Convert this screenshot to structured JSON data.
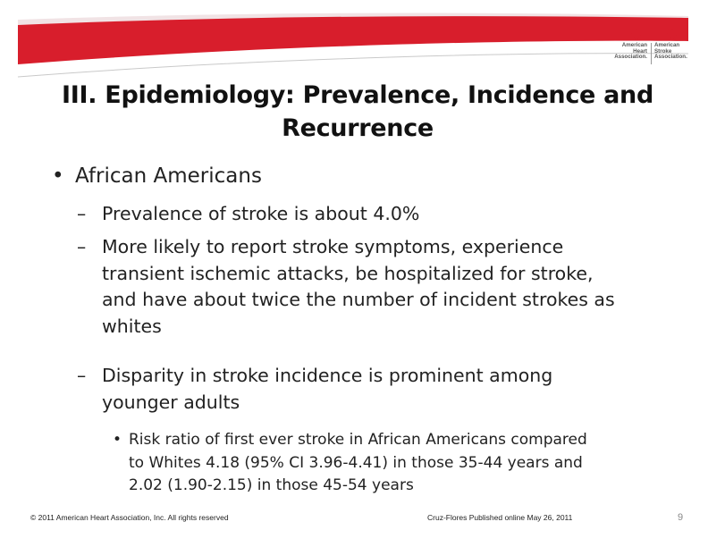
{
  "logo": {
    "left_lines": [
      "American",
      "Heart",
      "Association."
    ],
    "right_lines": [
      "American",
      "Stroke",
      "Association."
    ]
  },
  "title": {
    "line1": "III. Epidemiology:  Prevalence, Incidence and",
    "line2": "Recurrence"
  },
  "bullet": {
    "symbol": "•",
    "text": "African Americans"
  },
  "subpoints": [
    {
      "dash": "–",
      "lines": [
        "Prevalence of stroke is about 4.0%"
      ]
    },
    {
      "dash": "–",
      "lines": [
        "More likely to report stroke symptoms, experience",
        "transient ischemic attacks, be hospitalized for stroke,",
        "and have about twice the number of incident strokes as",
        "whites"
      ]
    },
    {
      "dash": "–",
      "lines": [
        "Disparity in stroke incidence is prominent among",
        "younger adults"
      ]
    }
  ],
  "subsub": {
    "symbol": "•",
    "lines": [
      "Risk ratio of first ever stroke in African Americans compared",
      "to Whites 4.18 (95% CI 3.96-4.41) in those 35-44 years and",
      "2.02 (1.90-2.15) in those 45-54 years"
    ]
  },
  "footer": {
    "copyright": "© 2011 American Heart Association, Inc. All rights reserved",
    "citation": "Cruz-Flores  Published online May 26, 2011",
    "page": "9"
  },
  "colors": {
    "swoosh": "#d81e2c",
    "swoosh_shade": "#f3d5d8",
    "rule": "#c9c9c9"
  }
}
